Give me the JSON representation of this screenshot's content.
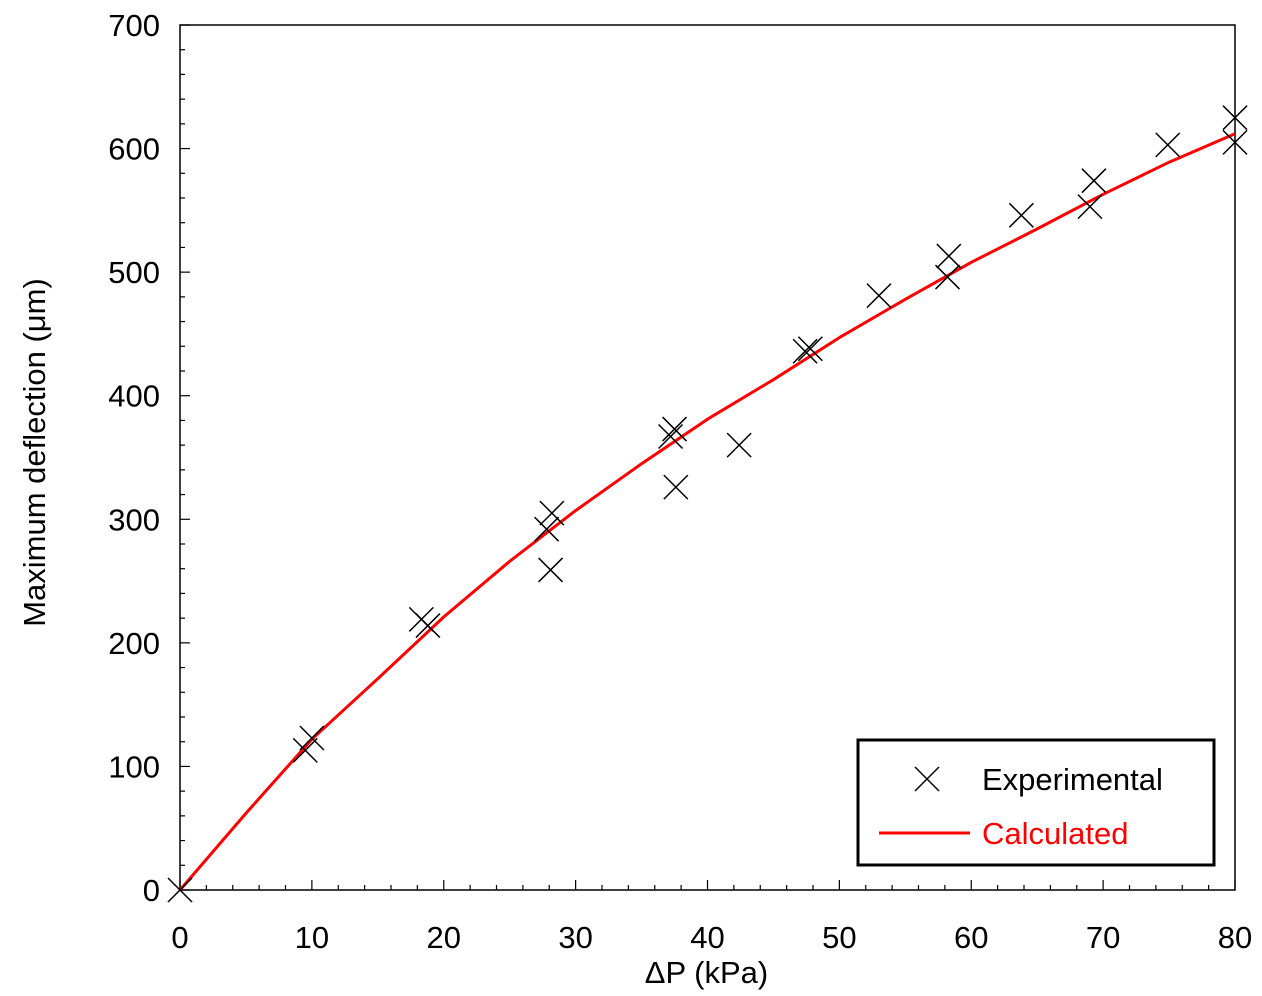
{
  "chart_data": {
    "type": "scatter",
    "title": "",
    "xlabel": "ΔP (kPa)",
    "ylabel": "Maximum deflection (μm)",
    "xlim": [
      0,
      80
    ],
    "ylim": [
      0,
      700
    ],
    "x_ticks": [
      "0",
      "10",
      "20",
      "30",
      "40",
      "50",
      "60",
      "70",
      "80"
    ],
    "y_ticks": [
      "0",
      "100",
      "200",
      "300",
      "400",
      "500",
      "600",
      "700"
    ],
    "grid": false,
    "legend_position": "bottom-right",
    "series": [
      {
        "name": "Experimental",
        "kind": "scatter",
        "marker": "x",
        "color": "#000000",
        "points": [
          [
            0,
            0
          ],
          [
            9.5,
            113
          ],
          [
            10.0,
            123
          ],
          [
            18.3,
            219
          ],
          [
            18.8,
            214
          ],
          [
            27.8,
            292
          ],
          [
            28.2,
            305
          ],
          [
            28.1,
            259
          ],
          [
            37.2,
            367
          ],
          [
            37.5,
            373
          ],
          [
            37.6,
            326
          ],
          [
            42.4,
            360
          ],
          [
            47.4,
            436
          ],
          [
            47.8,
            438
          ],
          [
            53.0,
            481
          ],
          [
            58.2,
            496
          ],
          [
            58.3,
            513
          ],
          [
            63.8,
            546
          ],
          [
            69.0,
            553
          ],
          [
            69.3,
            574
          ],
          [
            74.9,
            603
          ],
          [
            80.0,
            605
          ],
          [
            80.0,
            625
          ]
        ]
      },
      {
        "name": "Calculated",
        "kind": "line",
        "color": "#ff0000",
        "points": [
          [
            0,
            0
          ],
          [
            5,
            62
          ],
          [
            10,
            122
          ],
          [
            15,
            171
          ],
          [
            20,
            221
          ],
          [
            25,
            266
          ],
          [
            30,
            307
          ],
          [
            35,
            345
          ],
          [
            40,
            381
          ],
          [
            45,
            413
          ],
          [
            50,
            447
          ],
          [
            55,
            478
          ],
          [
            60,
            508
          ],
          [
            65,
            535
          ],
          [
            70,
            563
          ],
          [
            75,
            589
          ],
          [
            80,
            612
          ]
        ]
      }
    ]
  }
}
